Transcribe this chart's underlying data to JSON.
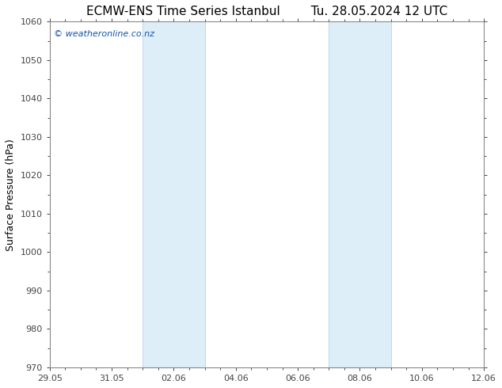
{
  "title_left": "ECMW-ENS Time Series Istanbul",
  "title_right": "Tu. 28.05.2024 12 UTC",
  "ylabel": "Surface Pressure (hPa)",
  "ylim": [
    970,
    1060
  ],
  "yticks": [
    970,
    980,
    990,
    1000,
    1010,
    1020,
    1030,
    1040,
    1050,
    1060
  ],
  "xlim": [
    0,
    14
  ],
  "xtick_labels": [
    "29.05",
    "31.05",
    "02.06",
    "04.06",
    "06.06",
    "08.06",
    "10.06",
    "12.06"
  ],
  "xtick_positions_days": [
    0,
    2,
    4,
    6,
    8,
    10,
    12,
    14
  ],
  "shaded_bands": [
    {
      "x_start_day": 3.0,
      "x_end_day": 5.0
    },
    {
      "x_start_day": 9.0,
      "x_end_day": 11.0
    }
  ],
  "shade_color": "#ddeef8",
  "shade_edge_color": "#aaccee",
  "background_color": "#ffffff",
  "plot_bg_color": "#ffffff",
  "spine_color": "#888888",
  "title_color": "#000000",
  "ylabel_color": "#000000",
  "tick_color": "#444444",
  "watermark_text": "© weatheronline.co.nz",
  "watermark_color": "#1155aa",
  "watermark_fontsize": 8,
  "title_fontsize": 11,
  "axis_fontsize": 8,
  "ylabel_fontsize": 9,
  "fig_width": 6.34,
  "fig_height": 4.9,
  "dpi": 100
}
